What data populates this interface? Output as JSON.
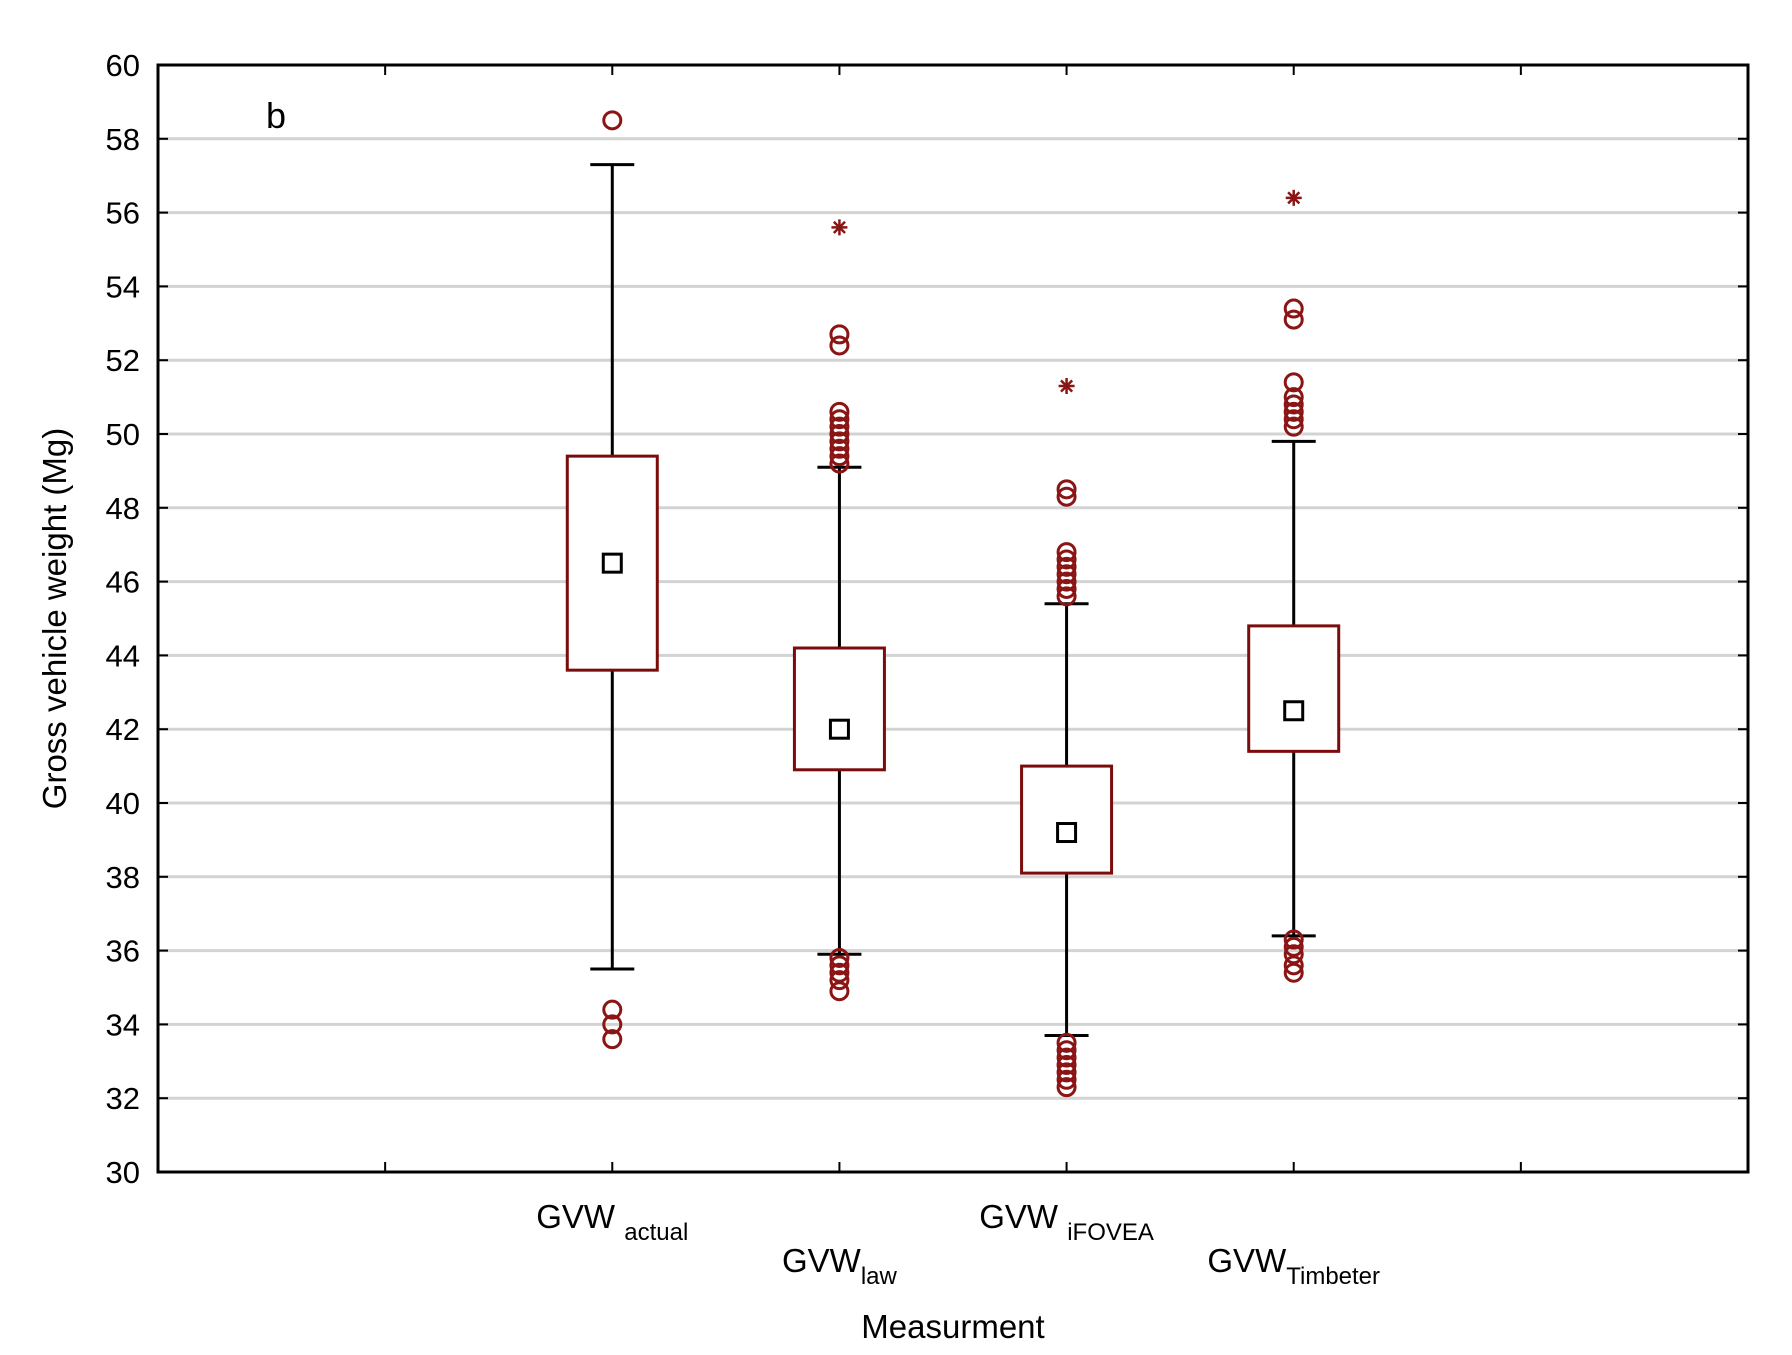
{
  "chart_data": {
    "type": "box",
    "panel_label": "b",
    "xlabel": "Measurment",
    "ylabel": "Gross vehicle weight (Mg)",
    "ylim": [
      30,
      60
    ],
    "yticks": [
      30,
      32,
      34,
      36,
      38,
      40,
      42,
      44,
      46,
      48,
      50,
      52,
      54,
      56,
      58,
      60
    ],
    "grid": "horizontal",
    "x_slots": 7,
    "colors": {
      "box": "#7b0c0c",
      "whisker": "#000000",
      "outlier": "#8b1515",
      "grid": "#d3d3d3"
    },
    "categories": [
      {
        "main": "GVW",
        "sub": "actual",
        "label_row": 1,
        "mean": 46.5,
        "box_low": 43.6,
        "box_high": 49.4,
        "whisker_low": 35.5,
        "whisker_high": 57.3,
        "outliers": [
          58.5,
          34.4,
          34.0,
          33.6
        ],
        "extremes": []
      },
      {
        "main": "GVW",
        "sub": "law",
        "label_row": 2,
        "mean": 42.0,
        "box_low": 40.9,
        "box_high": 44.2,
        "whisker_low": 35.9,
        "whisker_high": 49.1,
        "outliers": [
          52.7,
          52.4,
          50.6,
          50.4,
          50.2,
          50.0,
          49.8,
          49.6,
          49.4,
          49.2,
          35.8,
          35.6,
          35.4,
          35.2,
          34.9
        ],
        "extremes": [
          55.6
        ]
      },
      {
        "main": "GVW",
        "sub": "iFOVEA",
        "label_row": 1,
        "mean": 39.2,
        "box_low": 38.1,
        "box_high": 41.0,
        "whisker_low": 33.7,
        "whisker_high": 45.4,
        "outliers": [
          48.5,
          48.3,
          46.8,
          46.6,
          46.4,
          46.2,
          46.0,
          45.8,
          45.6,
          33.5,
          33.3,
          33.1,
          32.9,
          32.7,
          32.5,
          32.3
        ],
        "extremes": [
          51.3
        ]
      },
      {
        "main": "GVW",
        "sub": "Timbeter",
        "label_row": 2,
        "mean": 42.5,
        "box_low": 41.4,
        "box_high": 44.8,
        "whisker_low": 36.4,
        "whisker_high": 49.8,
        "outliers": [
          53.4,
          53.1,
          51.4,
          51.0,
          50.8,
          50.6,
          50.4,
          50.2,
          36.3,
          36.1,
          35.9,
          35.6,
          35.4
        ],
        "extremes": [
          56.4
        ]
      }
    ]
  }
}
